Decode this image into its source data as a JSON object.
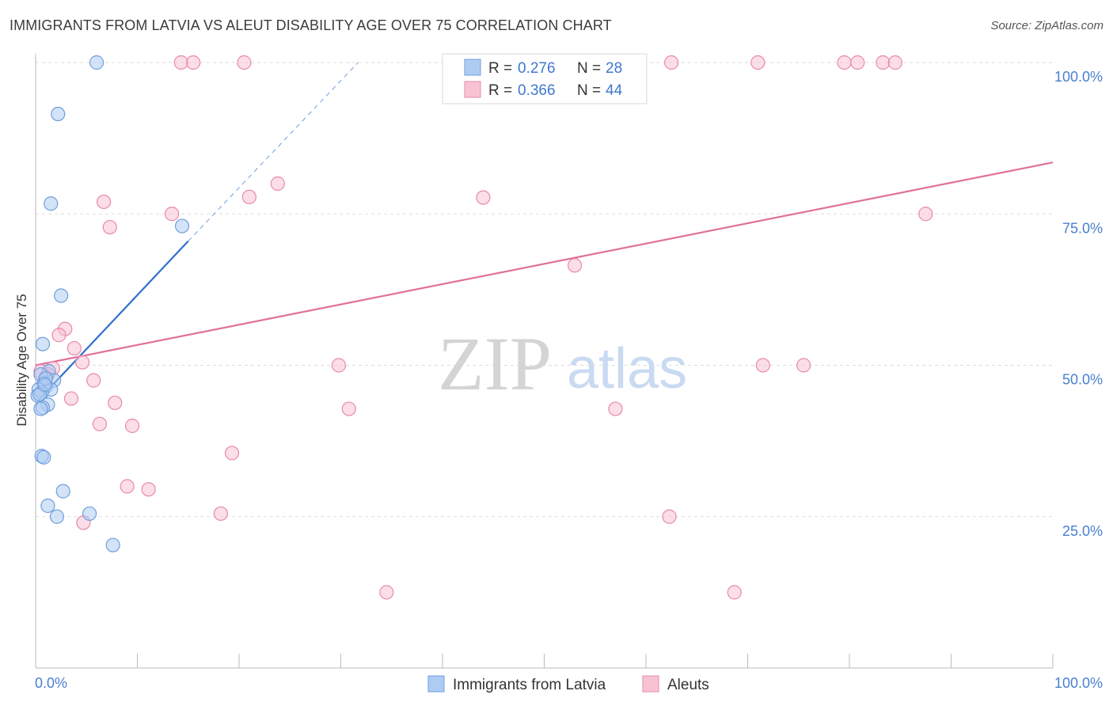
{
  "title": "IMMIGRANTS FROM LATVIA VS ALEUT DISABILITY AGE OVER 75 CORRELATION CHART",
  "source": "Source: ZipAtlas.com",
  "watermark": {
    "zip": "ZIP",
    "atlas": "atlas"
  },
  "colors": {
    "blue_fill": "#aeccf2",
    "blue_stroke": "#6f9fdc",
    "blue_line": "#2f6fcf",
    "pink_fill": "#f7c3d3",
    "pink_stroke": "#e889a9",
    "pink_line": "#e0709a",
    "tick_text": "#4a7fcf",
    "grid": "#dddddd"
  },
  "legend": {
    "r_label": "R =",
    "n_label": "N =",
    "rows": [
      {
        "series": "blue",
        "r": "0.276",
        "n": "28"
      },
      {
        "series": "pink",
        "r": "0.366",
        "n": "44"
      }
    ]
  },
  "chart_data": {
    "type": "scatter",
    "xlabel": "",
    "ylabel": "Disability Age Over 75",
    "xlim": [
      0,
      100
    ],
    "ylim": [
      0,
      100
    ],
    "x_tick_labels": [
      "0.0%",
      "100.0%"
    ],
    "y_ticks": [
      25,
      50,
      75,
      100
    ],
    "y_tick_labels": [
      "25.0%",
      "50.0%",
      "75.0%",
      "100.0%"
    ],
    "grid": true,
    "legend_position": "bottom",
    "series": [
      {
        "name": "Immigrants from Latvia",
        "color": "blue",
        "points": [
          [
            6.0,
            100.0
          ],
          [
            2.2,
            91.5
          ],
          [
            1.5,
            76.7
          ],
          [
            2.5,
            61.5
          ],
          [
            0.7,
            53.5
          ],
          [
            1.3,
            49.0
          ],
          [
            0.5,
            48.5
          ],
          [
            1.8,
            47.5
          ],
          [
            0.8,
            47.0
          ],
          [
            1.0,
            46.5
          ],
          [
            0.3,
            46.0
          ],
          [
            1.5,
            46.0
          ],
          [
            0.6,
            45.5
          ],
          [
            0.2,
            45.0
          ],
          [
            1.2,
            43.5
          ],
          [
            0.7,
            43.0
          ],
          [
            0.5,
            42.8
          ],
          [
            0.6,
            35.0
          ],
          [
            0.8,
            34.8
          ],
          [
            2.7,
            29.2
          ],
          [
            1.2,
            26.8
          ],
          [
            5.3,
            25.5
          ],
          [
            2.1,
            25.0
          ],
          [
            7.6,
            20.3
          ],
          [
            14.4,
            73.0
          ],
          [
            0.4,
            45.2
          ],
          [
            1.0,
            47.8
          ],
          [
            0.9,
            46.8
          ]
        ],
        "trend": {
          "x": [
            0.3,
            15.0
          ],
          "y": [
            44.3,
            70.5
          ],
          "extension_to": [
            31.7,
            100.0
          ]
        }
      },
      {
        "name": "Aleuts",
        "color": "pink",
        "points": [
          [
            14.3,
            100.0
          ],
          [
            15.5,
            100.0
          ],
          [
            20.5,
            100.0
          ],
          [
            47.0,
            100.0
          ],
          [
            62.5,
            100.0
          ],
          [
            71.0,
            100.0
          ],
          [
            79.5,
            100.0
          ],
          [
            80.8,
            100.0
          ],
          [
            83.3,
            100.0
          ],
          [
            84.5,
            100.0
          ],
          [
            23.8,
            80.0
          ],
          [
            21.0,
            77.8
          ],
          [
            44.0,
            77.7
          ],
          [
            6.7,
            77.0
          ],
          [
            13.4,
            75.0
          ],
          [
            87.5,
            75.0
          ],
          [
            7.3,
            72.8
          ],
          [
            53.0,
            66.5
          ],
          [
            2.9,
            56.0
          ],
          [
            2.3,
            55.0
          ],
          [
            3.8,
            52.8
          ],
          [
            4.6,
            50.5
          ],
          [
            29.8,
            50.0
          ],
          [
            71.5,
            50.0
          ],
          [
            75.5,
            50.0
          ],
          [
            1.7,
            49.5
          ],
          [
            0.5,
            49.0
          ],
          [
            1.2,
            48.5
          ],
          [
            5.7,
            47.5
          ],
          [
            3.5,
            44.5
          ],
          [
            7.8,
            43.8
          ],
          [
            30.8,
            42.8
          ],
          [
            57.0,
            42.8
          ],
          [
            6.3,
            40.3
          ],
          [
            9.5,
            40.0
          ],
          [
            19.3,
            35.5
          ],
          [
            9.0,
            30.0
          ],
          [
            11.1,
            29.5
          ],
          [
            18.2,
            25.5
          ],
          [
            62.3,
            25.0
          ],
          [
            4.7,
            24.0
          ],
          [
            34.5,
            12.5
          ],
          [
            68.7,
            12.5
          ],
          [
            1.0,
            48.0
          ]
        ],
        "trend": {
          "x": [
            0.0,
            100.0
          ],
          "y": [
            50.0,
            83.5
          ]
        }
      }
    ]
  }
}
